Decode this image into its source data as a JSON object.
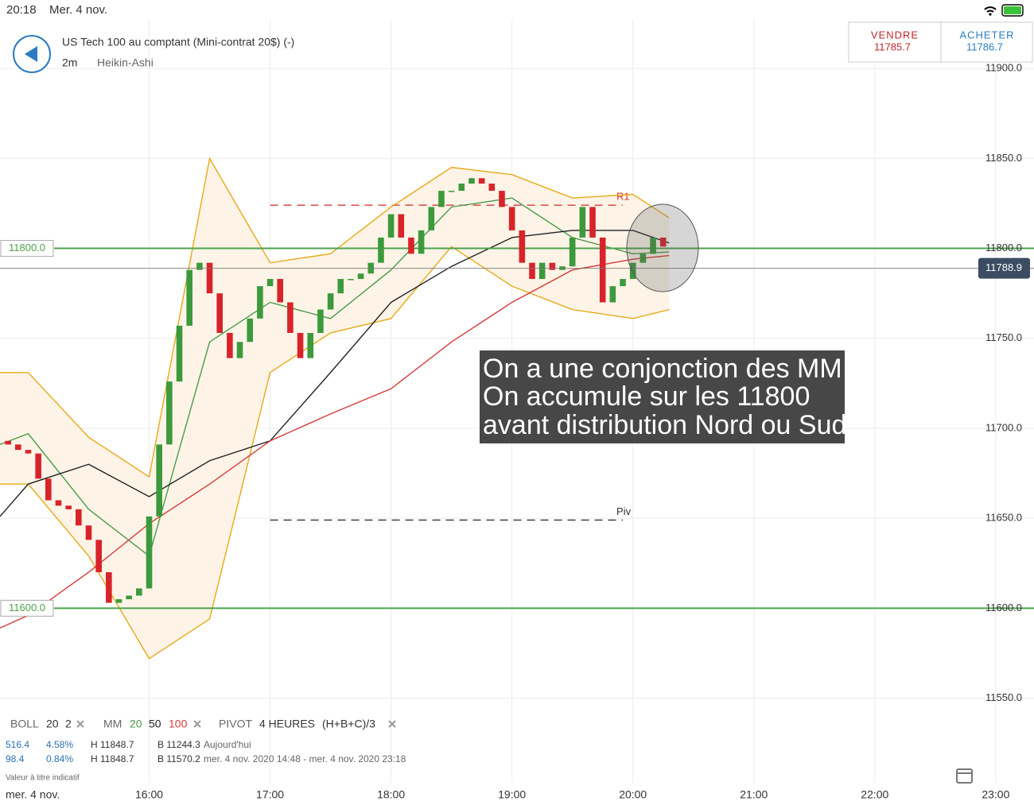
{
  "status_bar": {
    "time": "20:18",
    "date": "Mer. 4 nov."
  },
  "header": {
    "instrument": "US Tech 100 au comptant (Mini-contrat 20$) (-)",
    "interval": "2m",
    "chart_style": "Heikin-Ashi"
  },
  "quote": {
    "sell_label": "VENDRE",
    "sell_price": "11785.7",
    "buy_label": "ACHETER",
    "buy_price": "11786.7"
  },
  "chart_data": {
    "type": "candlestick",
    "x": [
      890,
      895,
      900,
      905,
      910,
      915,
      920,
      925,
      930,
      935,
      940,
      945,
      950,
      955,
      960,
      965,
      970,
      975,
      980,
      985,
      990,
      995,
      1000,
      1005,
      1010,
      1015,
      1020,
      1025,
      1030,
      1035,
      1040,
      1045,
      1050,
      1055,
      1060,
      1065,
      1070,
      1075,
      1080,
      1085,
      1090,
      1095,
      1100,
      1105,
      1110,
      1115,
      1120,
      1125,
      1130,
      1135,
      1140,
      1145,
      1150,
      1155,
      1160,
      1165,
      1170,
      1175,
      1180,
      1185,
      1190,
      1195,
      1200,
      1205,
      1210,
      1215
    ],
    "open": [
      11693,
      11691,
      11688,
      11686,
      11672,
      11660,
      11657,
      11655,
      11646,
      11638,
      11620,
      11603,
      11605,
      11607,
      11611,
      11651,
      11691,
      11726,
      11757,
      11788,
      11792,
      11775,
      11753,
      11739,
      11748,
      11761,
      11779,
      11783,
      11770,
      11753,
      11739,
      11753,
      11766,
      11775,
      11783,
      11783,
      11786,
      11792,
      11806,
      11819,
      11806,
      11797,
      11810,
      11823,
      11832,
      11832,
      11836,
      11839,
      11836,
      11832,
      11823,
      11810,
      11792,
      11783,
      11792,
      11788,
      11790,
      11806,
      11823,
      11806,
      11770,
      11779,
      11783,
      11792,
      11797,
      11806
    ],
    "close": [
      11691,
      11688,
      11686,
      11672,
      11660,
      11657,
      11655,
      11646,
      11638,
      11620,
      11603,
      11605,
      11607,
      11611,
      11651,
      11691,
      11726,
      11757,
      11788,
      11792,
      11775,
      11753,
      11739,
      11748,
      11761,
      11779,
      11783,
      11770,
      11753,
      11739,
      11753,
      11766,
      11775,
      11783,
      11783,
      11786,
      11792,
      11806,
      11819,
      11806,
      11797,
      11810,
      11823,
      11832,
      11832,
      11836,
      11839,
      11836,
      11832,
      11823,
      11810,
      11792,
      11783,
      11792,
      11788,
      11790,
      11806,
      11823,
      11806,
      11770,
      11779,
      11783,
      11792,
      11797,
      11806,
      11801
    ],
    "up_color": "#3c9a3c",
    "down_color": "#d8232a",
    "lines": {
      "x": [
        886,
        900,
        930,
        960,
        990,
        1020,
        1050,
        1080,
        1110,
        1140,
        1170,
        1200,
        1218
      ],
      "series": [
        {
          "color": "#e8a917",
          "values": [
            11731,
            11731,
            11695,
            11673,
            11850,
            11792,
            11797,
            11823,
            11845,
            11841,
            11828,
            11830,
            11817
          ]
        },
        {
          "color": "#e8a917",
          "values": [
            11669,
            11669,
            11629,
            11572,
            11594,
            11731,
            11753,
            11761,
            11801,
            11779,
            11766,
            11761,
            11766
          ]
        },
        {
          "color": "#4c9a4c",
          "values": [
            11691,
            11697,
            11655,
            11629,
            11748,
            11770,
            11761,
            11788,
            11823,
            11828,
            11806,
            11797,
            11798
          ]
        },
        {
          "color": "#222222",
          "values": [
            11651,
            11669,
            11680,
            11662,
            11682,
            11693,
            11731,
            11770,
            11790,
            11806,
            11810,
            11810,
            11803
          ]
        },
        {
          "color": "#d83a3a",
          "values": [
            11589,
            11596,
            11620,
            11647,
            11669,
            11693,
            11708,
            11722,
            11748,
            11770,
            11788,
            11794,
            11796
          ]
        }
      ]
    },
    "band_fill": "#fdf4e7",
    "xlim": [
      886,
      1399
    ],
    "xticks": [
      {
        "value": 960,
        "label": "16:00"
      },
      {
        "value": 1020,
        "label": "17:00"
      },
      {
        "value": 1080,
        "label": "18:00"
      },
      {
        "value": 1140,
        "label": "19:00"
      },
      {
        "value": 1200,
        "label": "20:00"
      },
      {
        "value": 1260,
        "label": "21:00"
      },
      {
        "value": 1320,
        "label": "22:00"
      },
      {
        "value": 1380,
        "label": "23:00"
      }
    ],
    "x_date_label": "mer. 4 nov.",
    "ylim": [
      11503,
      11927
    ],
    "yticks": [
      {
        "value": 11550,
        "label": "11550.0"
      },
      {
        "value": 11600,
        "label": "11600.0"
      },
      {
        "value": 11650,
        "label": "11650.0"
      },
      {
        "value": 11700,
        "label": "11700.0"
      },
      {
        "value": 11750,
        "label": "11750.0"
      },
      {
        "value": 11800,
        "label": "11800.0"
      },
      {
        "value": 11850,
        "label": "11850.0"
      },
      {
        "value": 11900,
        "label": "11900.0"
      }
    ],
    "grid": true,
    "levels": [
      {
        "value": 11800,
        "label": "11800.0",
        "color": "#4ca24c"
      },
      {
        "value": 11600,
        "label": "11600.0",
        "color": "#4ca24c"
      }
    ],
    "pivots": [
      {
        "name": "R1",
        "value": 11824,
        "from": 1020,
        "to": 1195,
        "color": "#d83a3a"
      },
      {
        "name": "Piv",
        "value": 11649,
        "from": 1020,
        "to": 1195,
        "color": "#333333"
      }
    ],
    "current_price": {
      "value": 11788.9,
      "label": "11788.9"
    },
    "annotation": [
      "On a une conjonction des MM",
      "On accumule sur les 11800",
      "avant distribution Nord ou Sud"
    ]
  },
  "indicators": {
    "boll": {
      "label": "BOLL",
      "period": "20",
      "deviation": "2"
    },
    "mm": {
      "label": "MM",
      "periods": [
        "20",
        "50",
        "100"
      ]
    },
    "pivot": {
      "label": "PIVOT",
      "timeframe": "4 HEURES",
      "formula": "(H+B+C)/3"
    },
    "stats": [
      [
        "516.4",
        "4.58%",
        "H 11848.7",
        "B 11244.3",
        "Aujourd'hui"
      ],
      [
        "98.4",
        "0.84%",
        "H 11848.7",
        "B 11570.2",
        "mer. 4 nov. 2020 14:48 - mer. 4 nov. 2020 23:18"
      ]
    ],
    "note": "Valeur à titre indicatif"
  }
}
